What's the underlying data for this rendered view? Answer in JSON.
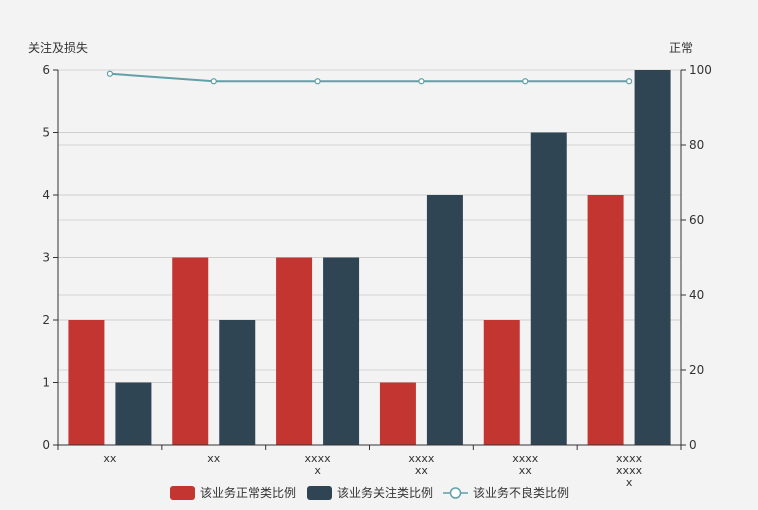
{
  "chart_data": {
    "type": "bar",
    "categories": [
      [
        "xx"
      ],
      [
        "xx"
      ],
      [
        "xxxx",
        "x"
      ],
      [
        "xxxx",
        "xx"
      ],
      [
        "xxxx",
        "xx"
      ],
      [
        "xxxx",
        "xxxx",
        "x"
      ]
    ],
    "series": [
      {
        "name": "该业务正常类比例",
        "type": "bar",
        "axis": "left",
        "color": "#c23531",
        "values": [
          2,
          3,
          3,
          1,
          2,
          4
        ]
      },
      {
        "name": "该业务关注类比例",
        "type": "bar",
        "axis": "left",
        "color": "#2f4554",
        "values": [
          1,
          2,
          3,
          4,
          5,
          6
        ]
      },
      {
        "name": "该业务不良类比例",
        "type": "line",
        "axis": "right",
        "color": "#61a0a8",
        "values": [
          99,
          97,
          97,
          97,
          97,
          97
        ]
      }
    ],
    "ylabel_left": "关注及损失",
    "ylabel_right": "正常",
    "ylim_left": [
      0,
      6
    ],
    "yticks_left": [
      0,
      1,
      2,
      3,
      4,
      5,
      6
    ],
    "ylim_right": [
      0,
      100
    ],
    "yticks_right": [
      0,
      20,
      40,
      60,
      80,
      100
    ],
    "grid": true,
    "legend_position": "bottom-center"
  }
}
